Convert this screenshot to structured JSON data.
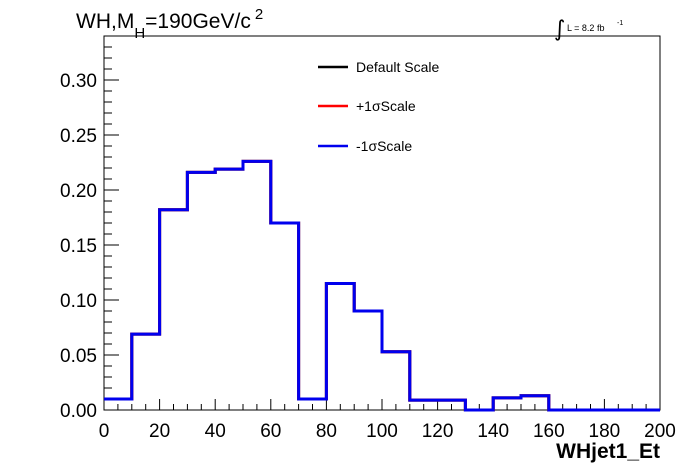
{
  "header": {
    "title_prefix": "WH,M",
    "title_subscript": "H",
    "title_suffix": "=190GeV/c",
    "title_superscript": "2",
    "lumi_integral": "∫",
    "lumi_text": "L = 8.2 fb",
    "lumi_superscript": "-1"
  },
  "chart_data": {
    "type": "line",
    "style": "step-histogram",
    "xlabel": "WHjet1_Et",
    "ylabel": "",
    "xlim": [
      0,
      200
    ],
    "ylim": [
      0,
      0.34
    ],
    "x_ticks": [
      0,
      20,
      40,
      60,
      80,
      100,
      120,
      140,
      160,
      180,
      200
    ],
    "x_tick_labels": [
      "0",
      "20",
      "40",
      "60",
      "80",
      "100",
      "120",
      "140",
      "160",
      "180",
      "200"
    ],
    "y_ticks": [
      0,
      0.05,
      0.1,
      0.15,
      0.2,
      0.25,
      0.3
    ],
    "y_tick_labels": [
      "0.00",
      "0.05",
      "0.10",
      "0.15",
      "0.20",
      "0.25",
      "0.30"
    ],
    "bin_edges": [
      0,
      10,
      20,
      30,
      40,
      50,
      60,
      70,
      80,
      90,
      100,
      110,
      120,
      130,
      140,
      150,
      160,
      170,
      180,
      190,
      200
    ],
    "grid": false,
    "legend_position": "top-center",
    "series": [
      {
        "name": "Default Scale",
        "color": "#000000",
        "values": [
          0.01,
          0.069,
          0.182,
          0.216,
          0.219,
          0.226,
          0.17,
          0.01,
          0.115,
          0.09,
          0.053,
          0.009,
          0.009,
          0.0,
          0.011,
          0.013,
          0.0,
          0.0,
          0.0,
          0.0
        ]
      },
      {
        "name": "+1σScale",
        "color": "#ff0000",
        "values": [
          0.01,
          0.069,
          0.182,
          0.216,
          0.219,
          0.226,
          0.17,
          0.01,
          0.115,
          0.09,
          0.053,
          0.009,
          0.009,
          0.0,
          0.011,
          0.013,
          0.0,
          0.0,
          0.0,
          0.0
        ]
      },
      {
        "name": "-1σScale",
        "color": "#0000ee",
        "values": [
          0.01,
          0.069,
          0.182,
          0.216,
          0.219,
          0.226,
          0.17,
          0.01,
          0.115,
          0.09,
          0.053,
          0.009,
          0.009,
          0.0,
          0.011,
          0.013,
          0.0,
          0.0,
          0.0,
          0.0
        ]
      }
    ]
  }
}
